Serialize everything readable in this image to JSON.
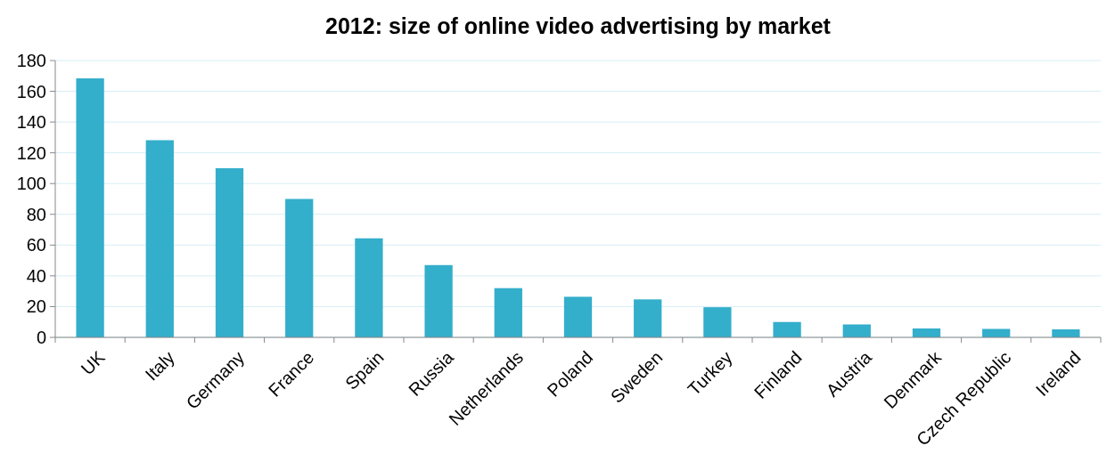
{
  "chart_data": {
    "type": "bar",
    "title": "2012: size of online video advertising by market",
    "categories": [
      "UK",
      "Italy",
      "Germany",
      "France",
      "Spain",
      "Russia",
      "Netherlands",
      "Poland",
      "Sweden",
      "Turkey",
      "Finland",
      "Austria",
      "Denmark",
      "Czech Republic",
      "Ireland"
    ],
    "values": [
      168.4,
      128.2,
      110,
      90,
      64.4,
      47,
      32,
      26.4,
      24.7,
      19.6,
      10,
      8.4,
      5.8,
      5.5,
      5.2
    ],
    "color": "#33aecb",
    "ylim": [
      0,
      180
    ],
    "yticks": [
      0,
      20,
      40,
      60,
      80,
      100,
      120,
      140,
      160,
      180
    ],
    "grid": "y"
  }
}
